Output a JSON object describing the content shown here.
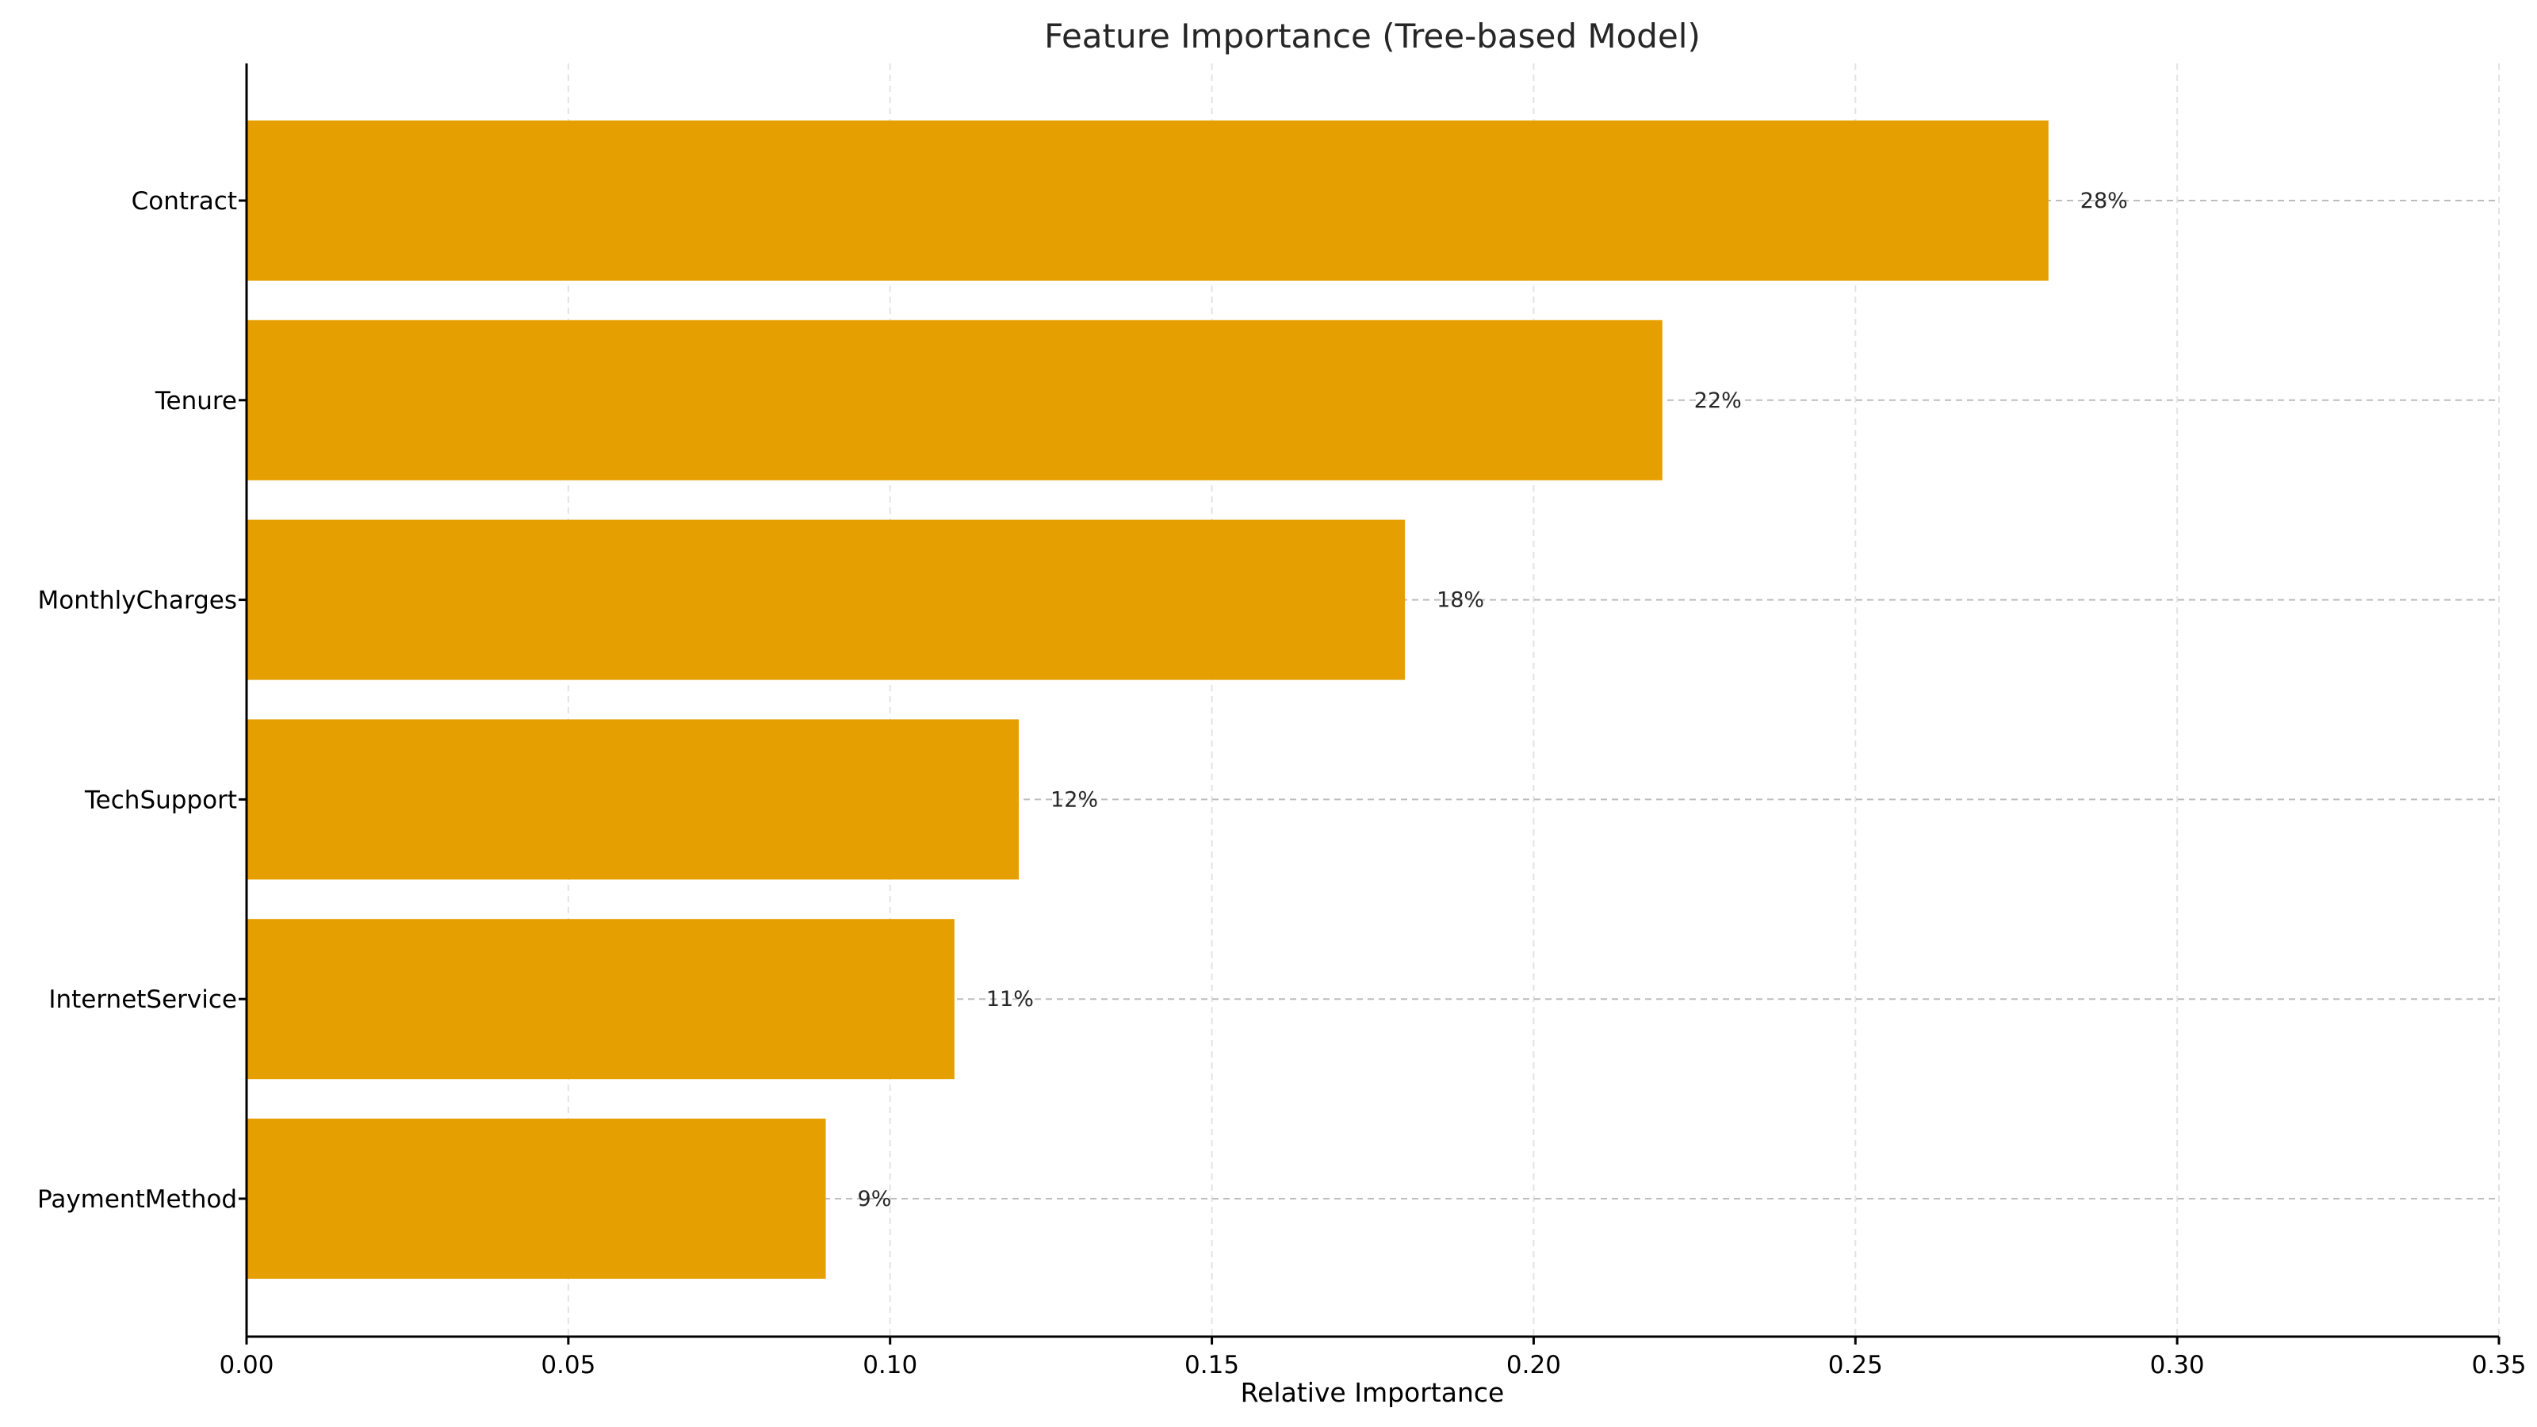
{
  "chart_data": {
    "type": "bar",
    "orientation": "horizontal",
    "title": "Feature Importance (Tree-based Model)",
    "xlabel": "Relative Importance",
    "ylabel": "",
    "categories": [
      "Contract",
      "Tenure",
      "MonthlyCharges",
      "TechSupport",
      "InternetService",
      "PaymentMethod"
    ],
    "values": [
      0.28,
      0.22,
      0.18,
      0.12,
      0.11,
      0.09
    ],
    "data_labels": [
      "28%",
      "22%",
      "18%",
      "12%",
      "11%",
      "9%"
    ],
    "xlim": [
      0,
      0.35
    ],
    "xticks": [
      "0.00",
      "0.05",
      "0.10",
      "0.15",
      "0.20",
      "0.25",
      "0.30",
      "0.35"
    ],
    "grid": true,
    "bar_color": "#E69F00"
  }
}
